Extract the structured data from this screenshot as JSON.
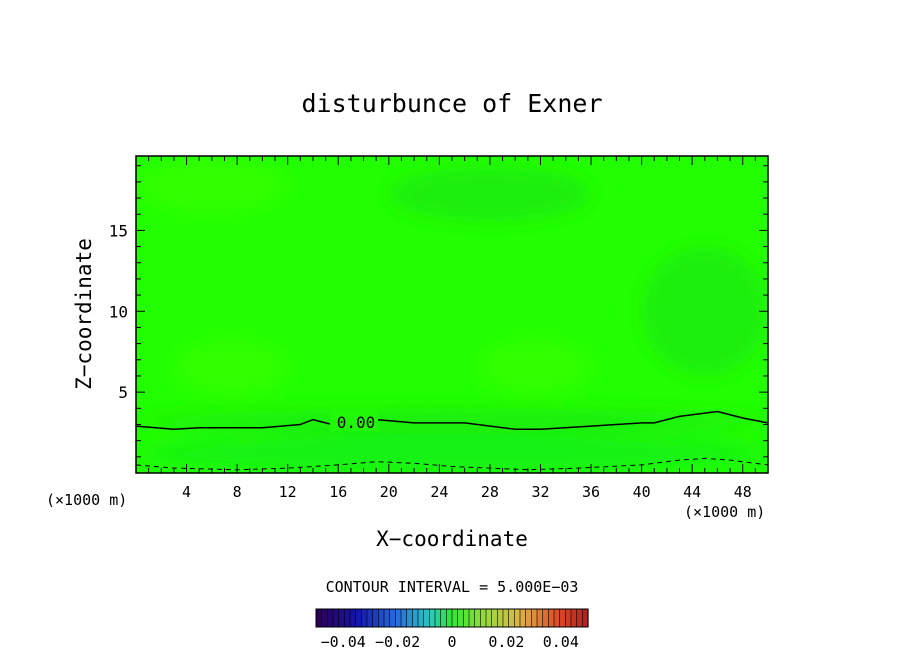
{
  "chart_data": {
    "type": "heatmap",
    "title": "disturbunce of Exner",
    "xlabel": "X−coordinate",
    "ylabel": "Z−coordinate",
    "x_unit": "(×1000 m)",
    "x_unit_right": "(×1000 m)",
    "xlim": [
      0,
      50
    ],
    "ylim": [
      0,
      19.6
    ],
    "x_ticks": [
      4,
      8,
      12,
      16,
      20,
      24,
      28,
      32,
      36,
      40,
      44,
      48
    ],
    "x_tick_labels": [
      "4",
      "8",
      "12",
      "16",
      "20",
      "24",
      "28",
      "32",
      "36",
      "40",
      "44",
      "48"
    ],
    "y_ticks": [
      5,
      10,
      15
    ],
    "y_tick_labels": [
      "5",
      "10",
      "15"
    ],
    "zero_contour": {
      "label": "0.00",
      "x": [
        0,
        3,
        5,
        10,
        13,
        14,
        15,
        16,
        19,
        22,
        26,
        30,
        32,
        36,
        40,
        41,
        43,
        46,
        48,
        50
      ],
      "y": [
        2.9,
        2.7,
        2.8,
        2.8,
        3.0,
        3.3,
        3.1,
        2.9,
        3.3,
        3.1,
        3.1,
        2.7,
        2.7,
        2.9,
        3.1,
        3.1,
        3.5,
        3.8,
        3.4,
        3.1
      ]
    },
    "negative_contour": {
      "x": [
        0,
        3,
        8,
        12,
        16,
        19,
        22,
        25,
        28,
        31,
        35,
        40,
        43,
        45,
        47,
        50
      ],
      "y": [
        0.5,
        0.3,
        0.2,
        0.3,
        0.5,
        0.7,
        0.6,
        0.4,
        0.3,
        0.2,
        0.3,
        0.5,
        0.8,
        0.9,
        0.8,
        0.5
      ]
    },
    "contour_interval_text": "CONTOUR INTERVAL = 5.000E−03",
    "colorbar": {
      "vmin": -0.05,
      "vmax": 0.05,
      "tick_values": [
        -0.04,
        -0.02,
        0,
        0.02,
        0.04
      ],
      "tick_labels": [
        "−0.04",
        "−0.02",
        "0",
        "0.02",
        "0.04"
      ]
    },
    "colors": {
      "field_main": "#22ff00",
      "field_low": "#18f212",
      "field_darker": "#1fee0c",
      "field_lighter": "#33ff00",
      "contour": "#000000"
    }
  }
}
